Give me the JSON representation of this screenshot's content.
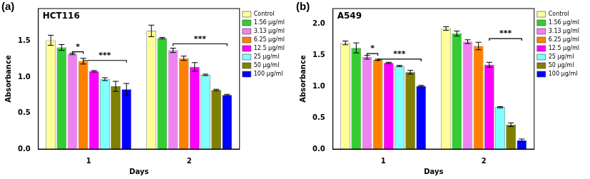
{
  "chart_data": [
    {
      "type": "bar",
      "panel_label": "(a)",
      "title": "HCT116",
      "x_label": "Days",
      "y_label": "Absorbance",
      "categories": [
        "1",
        "2"
      ],
      "series": [
        {
          "name": "Control",
          "color": "#ffff99",
          "values": [
            1.51,
            1.64
          ],
          "errors": [
            0.07,
            0.08
          ]
        },
        {
          "name": "1.56 µg/ml",
          "color": "#33cc33",
          "values": [
            1.41,
            1.54
          ],
          "errors": [
            0.04,
            0.01
          ]
        },
        {
          "name": "3.13 µg/ml",
          "color": "#ee82ee",
          "values": [
            1.32,
            1.37
          ],
          "errors": [
            0.01,
            0.03
          ]
        },
        {
          "name": "6.25 µg/ml",
          "color": "#ff8000",
          "values": [
            1.22,
            1.26
          ],
          "errors": [
            0.04,
            0.03
          ]
        },
        {
          "name": "12.5 µg/ml",
          "color": "#ff00ff",
          "values": [
            1.08,
            1.14
          ],
          "errors": [
            0.01,
            0.06
          ]
        },
        {
          "name": "25 µg/ml",
          "color": "#80ffff",
          "values": [
            0.97,
            1.03
          ],
          "errors": [
            0.02,
            0.01
          ]
        },
        {
          "name": "50 µg/ml",
          "color": "#808000",
          "values": [
            0.87,
            0.82
          ],
          "errors": [
            0.07,
            0.01
          ]
        },
        {
          "name": "100 µg/ml",
          "color": "#0000ff",
          "values": [
            0.83,
            0.75
          ],
          "errors": [
            0.08,
            0.01
          ]
        }
      ],
      "ylim": [
        0,
        1.95
      ],
      "yticks": [
        {
          "value": 0,
          "label": "0.0"
        },
        {
          "value": 0.5,
          "label": "0.5"
        },
        {
          "value": 1,
          "label": "1.0"
        },
        {
          "value": 1.5,
          "label": "1.5"
        }
      ],
      "grid": false,
      "legend": "upper right",
      "annotations": [
        {
          "text": "*",
          "category": "1",
          "from": "3.13 µg/ml",
          "to": "6.25 µg/ml",
          "y": 1.35
        },
        {
          "text": "***",
          "category": "1",
          "from": "6.25 µg/ml",
          "to": "100 µg/ml",
          "y": 1.23
        },
        {
          "text": "***",
          "category": "2",
          "from": "3.13 µg/ml",
          "to": "100 µg/ml",
          "y": 1.46
        }
      ]
    },
    {
      "type": "bar",
      "panel_label": "(b)",
      "title": "A549",
      "x_label": "Days",
      "y_label": "Absorbance",
      "categories": [
        "1",
        "2"
      ],
      "series": [
        {
          "name": "Control",
          "color": "#ffff99",
          "values": [
            1.7,
            1.93
          ],
          "errors": [
            0.03,
            0.03
          ]
        },
        {
          "name": "1.56 µg/ml",
          "color": "#33cc33",
          "values": [
            1.62,
            1.85
          ],
          "errors": [
            0.08,
            0.04
          ]
        },
        {
          "name": "3.13 µg/ml",
          "color": "#ee82ee",
          "values": [
            1.47,
            1.72
          ],
          "errors": [
            0.03,
            0.03
          ]
        },
        {
          "name": "6.25 µg/ml",
          "color": "#ff8000",
          "values": [
            1.43,
            1.65
          ],
          "errors": [
            0.01,
            0.06
          ]
        },
        {
          "name": "12.5 µg/ml",
          "color": "#ff00ff",
          "values": [
            1.38,
            1.35
          ],
          "errors": [
            0.01,
            0.04
          ]
        },
        {
          "name": "25 µg/ml",
          "color": "#80ffff",
          "values": [
            1.33,
            0.67
          ],
          "errors": [
            0.01,
            0.01
          ]
        },
        {
          "name": "50 µg/ml",
          "color": "#808000",
          "values": [
            1.23,
            0.39
          ],
          "errors": [
            0.03,
            0.03
          ]
        },
        {
          "name": "100 µg/ml",
          "color": "#0000ff",
          "values": [
            1.01,
            0.14
          ],
          "errors": [
            0.01,
            0.02
          ]
        }
      ],
      "ylim": [
        0,
        2.25
      ],
      "yticks": [
        {
          "value": 0,
          "label": "0.0"
        },
        {
          "value": 0.5,
          "label": "0.5"
        },
        {
          "value": 1,
          "label": "1.0"
        },
        {
          "value": 1.5,
          "label": "1.5"
        },
        {
          "value": 2,
          "label": "2.0"
        }
      ],
      "grid": false,
      "legend": "upper right",
      "annotations": [
        {
          "text": "*",
          "category": "1",
          "from": "3.13 µg/ml",
          "to": "6.25 µg/ml",
          "y": 1.53
        },
        {
          "text": "***",
          "category": "1",
          "from": "6.25 µg/ml",
          "to": "100 µg/ml",
          "y": 1.44
        },
        {
          "text": "***",
          "category": "2",
          "from": "12.5 µg/ml",
          "to": "100 µg/ml",
          "y": 1.77
        }
      ]
    }
  ]
}
